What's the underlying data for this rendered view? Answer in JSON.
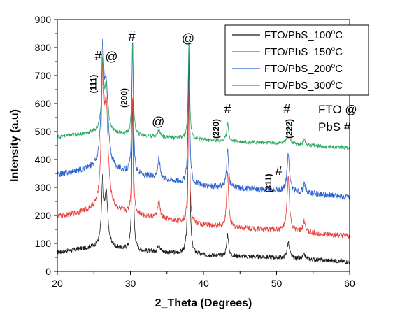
{
  "chart_data": {
    "type": "line",
    "xlabel": "2_Theta (Degrees)",
    "ylabel": "Intensity (a.u)",
    "xlim": [
      20,
      60
    ],
    "ylim": [
      0,
      900
    ],
    "xticks": [
      20,
      30,
      40,
      50,
      60
    ],
    "yticks": [
      0,
      100,
      200,
      300,
      400,
      500,
      600,
      700,
      800,
      900
    ],
    "legend_position": "top-right",
    "series": [
      {
        "name": "FTO/PbS_100",
        "sup": "o",
        "unit": "C",
        "color": "#1a1a1a",
        "baseline": [
          [
            20,
            68
          ],
          [
            26,
            90
          ],
          [
            30,
            75
          ],
          [
            40,
            58
          ],
          [
            50,
            50
          ],
          [
            60,
            35
          ]
        ],
        "noise": 8,
        "peaks": [
          [
            26.2,
            215,
            0.18
          ],
          [
            26.7,
            180,
            0.25
          ],
          [
            30.3,
            545,
            0.12
          ],
          [
            33.9,
            30,
            0.2
          ],
          [
            38.0,
            720,
            0.12
          ],
          [
            43.3,
            80,
            0.15
          ],
          [
            51.6,
            55,
            0.2
          ],
          [
            53.8,
            15,
            0.2
          ]
        ]
      },
      {
        "name": "FTO/PbS_150",
        "sup": "o",
        "unit": "C",
        "color": "#e8403a",
        "baseline": [
          [
            20,
            195
          ],
          [
            26,
            225
          ],
          [
            30,
            205
          ],
          [
            40,
            165
          ],
          [
            50,
            148
          ],
          [
            60,
            125
          ]
        ],
        "noise": 10,
        "peaks": [
          [
            26.2,
            430,
            0.22
          ],
          [
            26.7,
            330,
            0.3
          ],
          [
            30.3,
            420,
            0.12
          ],
          [
            33.9,
            60,
            0.2
          ],
          [
            38.0,
            480,
            0.12
          ],
          [
            43.3,
            200,
            0.15
          ],
          [
            51.6,
            190,
            0.2
          ],
          [
            53.8,
            40,
            0.2
          ]
        ]
      },
      {
        "name": "FTO/PbS_200",
        "sup": "o",
        "unit": "C",
        "color": "#2b62d1",
        "baseline": [
          [
            20,
            345
          ],
          [
            26,
            375
          ],
          [
            30,
            350
          ],
          [
            40,
            305
          ],
          [
            50,
            290
          ],
          [
            60,
            265
          ]
        ],
        "noise": 11,
        "peaks": [
          [
            26.2,
            380,
            0.22
          ],
          [
            26.7,
            260,
            0.3
          ],
          [
            30.3,
            470,
            0.12
          ],
          [
            33.9,
            70,
            0.2
          ],
          [
            38.0,
            510,
            0.12
          ],
          [
            43.3,
            140,
            0.15
          ],
          [
            51.6,
            135,
            0.2
          ],
          [
            53.8,
            30,
            0.2
          ]
        ]
      },
      {
        "name": "FTO/PbS_300",
        "sup": "o",
        "unit": "C",
        "color": "#2aa860",
        "baseline": [
          [
            20,
            480
          ],
          [
            26,
            500
          ],
          [
            30,
            488
          ],
          [
            40,
            470
          ],
          [
            50,
            458
          ],
          [
            60,
            442
          ]
        ],
        "noise": 7,
        "peaks": [
          [
            26.2,
            230,
            0.18
          ],
          [
            26.7,
            160,
            0.25
          ],
          [
            30.3,
            330,
            0.12
          ],
          [
            33.9,
            25,
            0.2
          ],
          [
            38.0,
            340,
            0.12
          ],
          [
            43.3,
            65,
            0.15
          ],
          [
            51.6,
            60,
            0.2
          ],
          [
            53.8,
            15,
            0.2
          ]
        ]
      }
    ],
    "annotations": [
      {
        "text": "#",
        "x": 25.6,
        "y": 755,
        "kind": "sym"
      },
      {
        "text": "@",
        "x": 27.4,
        "y": 752,
        "kind": "sym"
      },
      {
        "text": "#",
        "x": 30.2,
        "y": 825,
        "kind": "sym"
      },
      {
        "text": "@",
        "x": 33.8,
        "y": 520,
        "kind": "sym"
      },
      {
        "text": "@",
        "x": 37.9,
        "y": 818,
        "kind": "sym"
      },
      {
        "text": "#",
        "x": 43.3,
        "y": 565,
        "kind": "sym"
      },
      {
        "text": "#",
        "x": 51.4,
        "y": 565,
        "kind": "sym"
      },
      {
        "text": "#",
        "x": 50.3,
        "y": 345,
        "kind": "sym"
      },
      {
        "text": "(111)",
        "x": 25.3,
        "y": 670,
        "kind": "hkl"
      },
      {
        "text": "(200)",
        "x": 29.5,
        "y": 620,
        "kind": "hkl"
      },
      {
        "text": "(220)",
        "x": 42.1,
        "y": 510,
        "kind": "hkl"
      },
      {
        "text": "(311)",
        "x": 49.3,
        "y": 315,
        "kind": "hkl"
      },
      {
        "text": "(222)",
        "x": 52.1,
        "y": 510,
        "kind": "hkl"
      }
    ],
    "key_lines": [
      "FTO @",
      "PbS #"
    ]
  }
}
